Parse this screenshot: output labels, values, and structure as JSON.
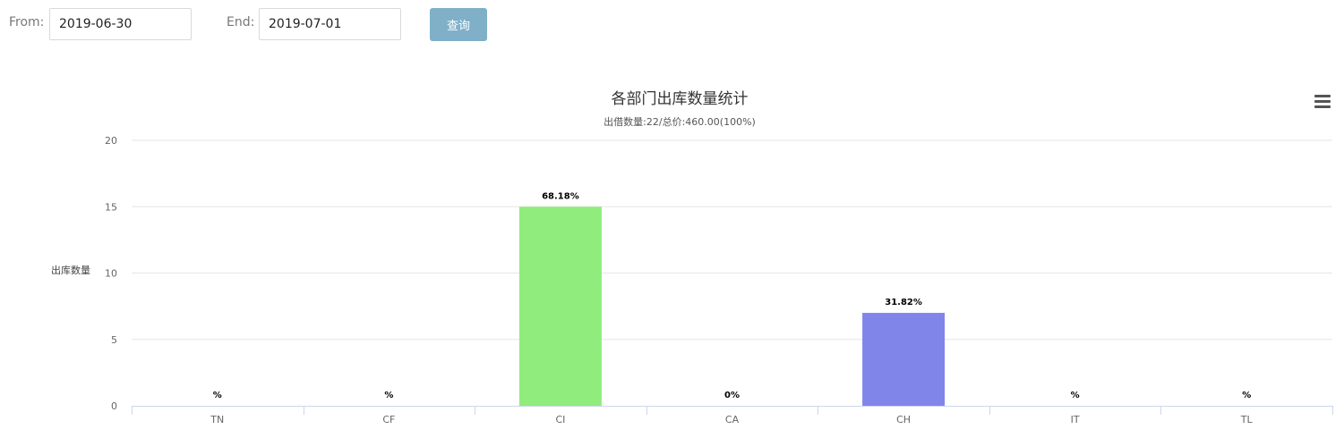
{
  "filters": {
    "from_label": "From:",
    "from_value": "2019-06-30",
    "end_label": "End:",
    "end_value": "2019-07-01",
    "query_button": "查询"
  },
  "menu_icon": "hamburger-menu-icon",
  "chart_data": {
    "type": "bar",
    "title": "各部门出库数量统计",
    "subtitle": "出借数量:22/总价:460.00(100%)",
    "xlabel": "",
    "ylabel": "出库数量",
    "categories": [
      "TN",
      "CF",
      "CI",
      "CA",
      "CH",
      "IT",
      "TL"
    ],
    "values": [
      0,
      0,
      15,
      0,
      7,
      0,
      0
    ],
    "data_labels": [
      "%",
      "%",
      "68.18%",
      "0%",
      "31.82%",
      "%",
      "%"
    ],
    "colors": [
      "#7cb5ec",
      "#434348",
      "#90ed7d",
      "#f7a35c",
      "#8085e9",
      "#f15c80",
      "#e4d354"
    ],
    "ylim": [
      0,
      20
    ],
    "yticks": [
      0,
      5,
      10,
      15,
      20
    ],
    "grid": true,
    "legend": "none"
  }
}
